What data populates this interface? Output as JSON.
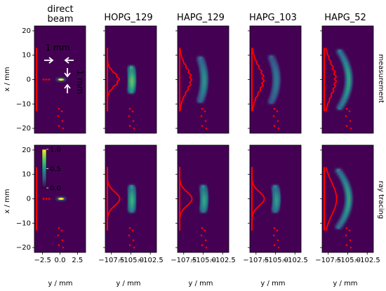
{
  "chart_data": {
    "type": "heatmap",
    "column_titles": [
      [
        "direct",
        "beam"
      ],
      [
        "HOPG_129"
      ],
      [
        "HAPG_129"
      ],
      [
        "HAPG_103"
      ],
      [
        "HAPG_52"
      ]
    ],
    "row_labels": [
      "measurement",
      "ray tracing"
    ],
    "ylabel": "x / mm",
    "xlabel": "y / mm",
    "ylim": [
      -22,
      22
    ],
    "y_ticks": [
      20,
      10,
      0,
      -10,
      -20
    ],
    "x_ticks_direct": [
      "−2.5",
      "0.0",
      "2.5"
    ],
    "x_ticks_other": [
      "−107.5",
      "−105.0",
      "−102.5"
    ],
    "annotations": {
      "horizontal_width": "1 mm",
      "vertical_width": "1 mm"
    },
    "colorbar": {
      "ticks": [
        "1.0",
        "0.5",
        "0.0"
      ],
      "range": [
        0,
        1
      ],
      "colormap": "viridis"
    },
    "colors": {
      "background": "#440154",
      "profile": "#ff0000",
      "annotation": "#ffffff"
    },
    "panels": [
      {
        "row": 0,
        "col": 0,
        "shape": "spot",
        "intensity": 1.0,
        "curvature": 0,
        "length": 1.0
      },
      {
        "row": 0,
        "col": 1,
        "shape": "bar",
        "intensity": 0.85,
        "curvature": 0.2,
        "length": 10
      },
      {
        "row": 0,
        "col": 2,
        "shape": "arc",
        "intensity": 0.55,
        "curvature": 1.2,
        "length": 18
      },
      {
        "row": 0,
        "col": 3,
        "shape": "arc",
        "intensity": 0.45,
        "curvature": 1.6,
        "length": 19
      },
      {
        "row": 0,
        "col": 4,
        "shape": "arc",
        "intensity": 0.6,
        "curvature": 2.8,
        "length": 24
      },
      {
        "row": 1,
        "col": 0,
        "shape": "spot",
        "intensity": 1.0,
        "curvature": 0,
        "length": 1.0
      },
      {
        "row": 1,
        "col": 1,
        "shape": "bar",
        "intensity": 0.75,
        "curvature": 0.1,
        "length": 10
      },
      {
        "row": 1,
        "col": 2,
        "shape": "bar",
        "intensity": 0.7,
        "curvature": 0.3,
        "length": 10
      },
      {
        "row": 1,
        "col": 3,
        "shape": "bar",
        "intensity": 0.65,
        "curvature": 0.4,
        "length": 10
      },
      {
        "row": 1,
        "col": 4,
        "shape": "arc",
        "intensity": 0.6,
        "curvature": 3.2,
        "length": 24
      }
    ]
  }
}
